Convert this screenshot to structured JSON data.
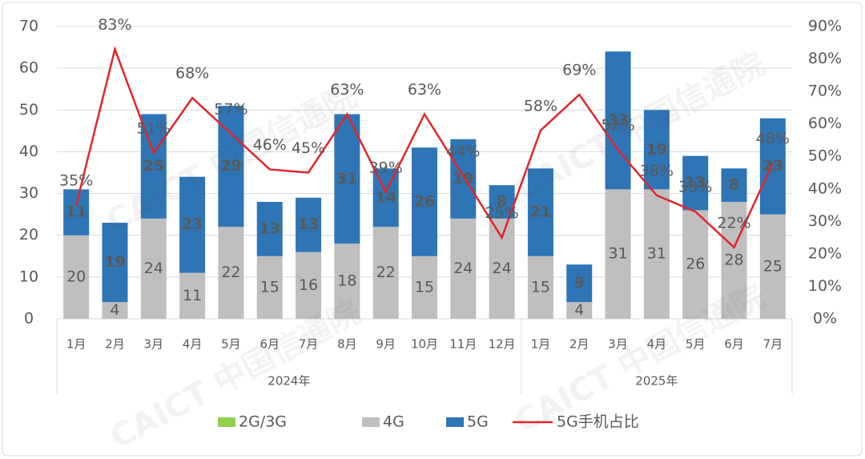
{
  "chart_data": {
    "type": "bar",
    "stacked": true,
    "watermark": "CAICT 中国信通院",
    "category_groups": [
      {
        "label": "2024年",
        "categories": [
          "1月",
          "2月",
          "3月",
          "4月",
          "5月",
          "6月",
          "7月",
          "8月",
          "9月",
          "10月",
          "11月",
          "12月"
        ]
      },
      {
        "label": "2025年",
        "categories": [
          "1月",
          "2月",
          "3月",
          "4月",
          "5月",
          "6月",
          "7月"
        ]
      }
    ],
    "series": [
      {
        "name": "2G/3G",
        "color": "#92d050",
        "values": [
          0,
          0,
          0,
          0,
          0,
          0,
          0,
          0,
          0,
          0,
          0,
          0,
          0,
          0,
          0,
          0,
          0,
          0,
          0
        ]
      },
      {
        "name": "4G",
        "color": "#bfbfbf",
        "values": [
          20,
          4,
          24,
          11,
          22,
          15,
          16,
          18,
          22,
          15,
          24,
          24,
          15,
          4,
          31,
          31,
          26,
          28,
          25
        ]
      },
      {
        "name": "5G",
        "color": "#2e75b6",
        "values": [
          11,
          19,
          25,
          23,
          29,
          13,
          13,
          31,
          14,
          26,
          19,
          8,
          21,
          9,
          33,
          19,
          13,
          8,
          23
        ]
      },
      {
        "name": "5G手机占比",
        "type": "line",
        "axis": "y2",
        "color": "#e2242b",
        "values": [
          35,
          83,
          51,
          68,
          57,
          46,
          45,
          63,
          39,
          63,
          44,
          25,
          58,
          69,
          52,
          38,
          33,
          22,
          48
        ],
        "value_labels": [
          "35%",
          "83%",
          "51%",
          "68%",
          "57%",
          "46%",
          "45%",
          "63%",
          "39%",
          "63%",
          "44%",
          "25%",
          "58%",
          "69%",
          "52%",
          "38%",
          "33%",
          "22%",
          "48%"
        ]
      }
    ],
    "ylim": [
      0,
      70
    ],
    "yticks": [
      0,
      10,
      20,
      30,
      40,
      50,
      60,
      70
    ],
    "y2lim": [
      0,
      90
    ],
    "y2ticks": [
      {
        "value": 0,
        "label": "0%"
      },
      {
        "value": 10,
        "label": "10%"
      },
      {
        "value": 20,
        "label": "20%"
      },
      {
        "value": 30,
        "label": "30%"
      },
      {
        "value": 40,
        "label": "40%"
      },
      {
        "value": 50,
        "label": "50%"
      },
      {
        "value": 60,
        "label": "60%"
      },
      {
        "value": 70,
        "label": "70%"
      },
      {
        "value": 80,
        "label": "80%"
      },
      {
        "value": 90,
        "label": "90%"
      }
    ],
    "grid": true
  }
}
